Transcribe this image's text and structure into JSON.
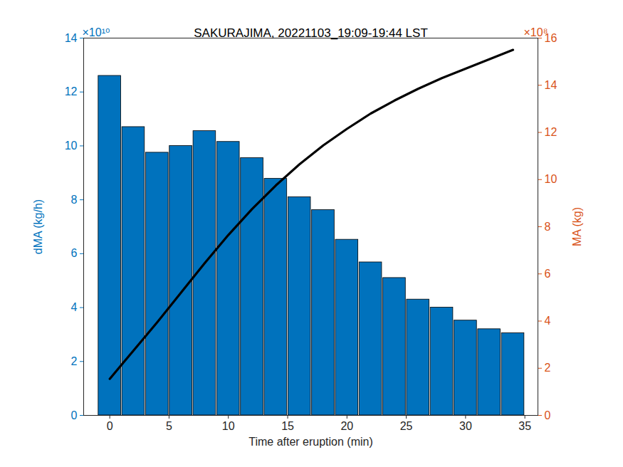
{
  "chart_data": {
    "type": "bar",
    "title": "SAKURAJIMA, 20221103_19:09-19:44 LST",
    "xlabel": "Time after eruption (min)",
    "ylabel": "dMA (kg/h)",
    "y2label": "MA (kg)",
    "y_multiplier": "×10¹⁰",
    "y2_multiplier": "×10⁸",
    "x": [
      0,
      2,
      4,
      6,
      8,
      10,
      12,
      14,
      16,
      18,
      20,
      22,
      24,
      26,
      28,
      30,
      32,
      34
    ],
    "series": [
      {
        "type": "bar",
        "color": "#0072BD",
        "values": [
          12.6,
          10.7,
          9.75,
          10.0,
          10.55,
          10.15,
          9.55,
          8.78,
          8.1,
          7.62,
          6.52,
          5.68,
          5.1,
          4.3,
          4.0,
          3.52,
          3.2,
          3.05
        ]
      },
      {
        "type": "line",
        "color": "#000000",
        "axis": "y2",
        "values": [
          1.55,
          2.75,
          3.95,
          5.2,
          6.45,
          7.65,
          8.75,
          9.75,
          10.65,
          11.45,
          12.15,
          12.8,
          13.35,
          13.85,
          14.3,
          14.7,
          15.1,
          15.5
        ]
      }
    ],
    "xlim": [
      -2.2,
      36.1
    ],
    "xticks": [
      0,
      5,
      10,
      15,
      20,
      25,
      30,
      35
    ],
    "ylim": [
      0,
      14
    ],
    "yticks": [
      0,
      2,
      4,
      6,
      8,
      10,
      12,
      14
    ],
    "y2lim": [
      0,
      16
    ],
    "y2ticks": [
      0,
      2,
      4,
      6,
      8,
      10,
      12,
      14,
      16
    ],
    "grid": false
  }
}
